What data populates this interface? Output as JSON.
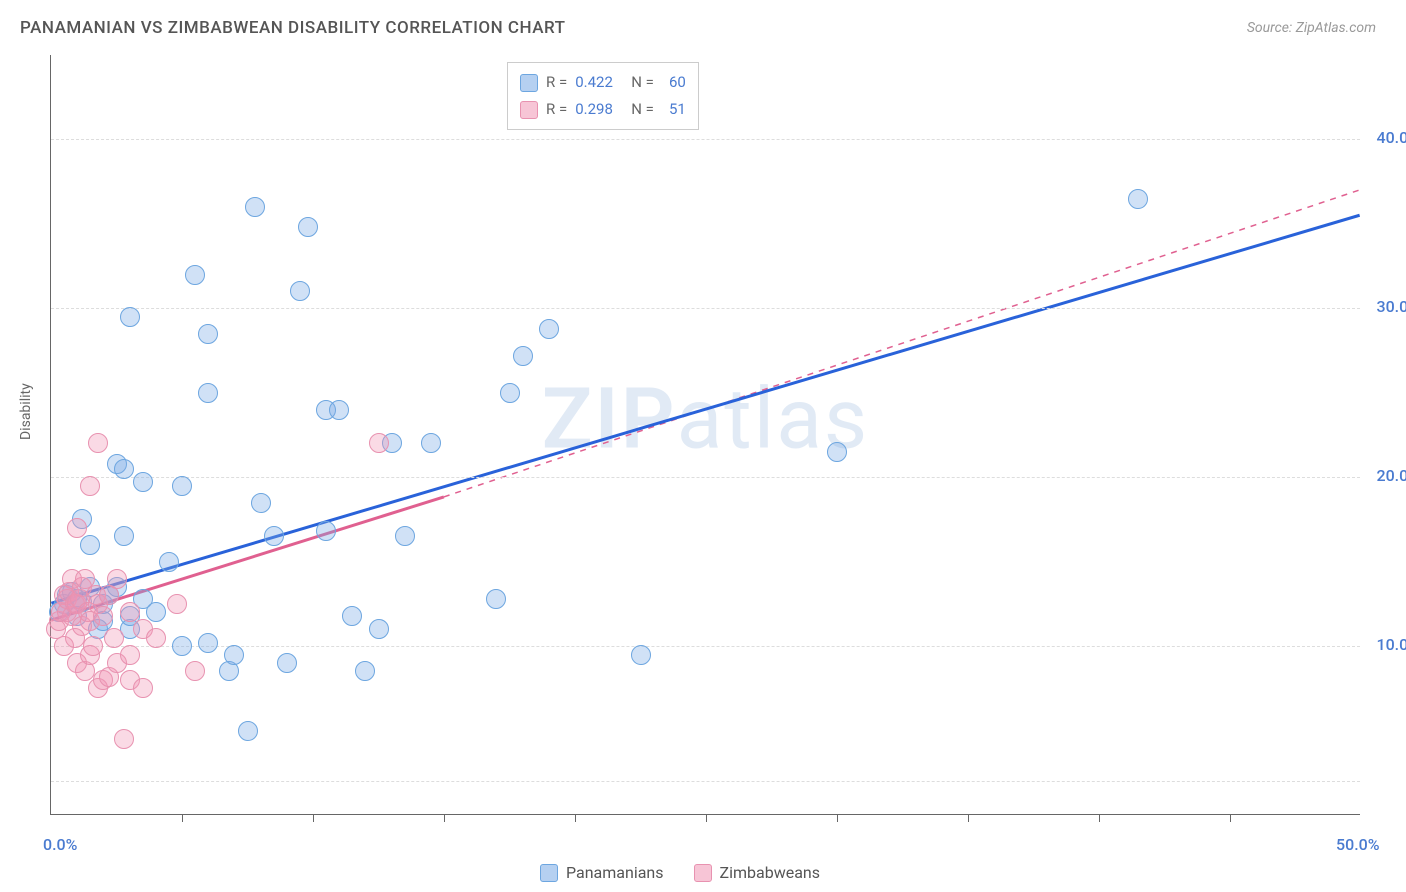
{
  "chart": {
    "type": "scatter",
    "title": "PANAMANIAN VS ZIMBABWEAN DISABILITY CORRELATION CHART",
    "source": "Source: ZipAtlas.com",
    "watermark": "ZIPatlas",
    "ylabel": "Disability",
    "background_color": "#ffffff",
    "grid_color": "#dddddd",
    "axis_color": "#666666",
    "title_color": "#555555",
    "title_fontsize": 17,
    "xlim": [
      0,
      50
    ],
    "ylim": [
      0,
      45
    ],
    "x_ticks": [
      0,
      10,
      20,
      30,
      40,
      50
    ],
    "x_tick_labels": {
      "0": "0.0%",
      "50": "50.0%"
    },
    "x_tick_positions_inner": [
      5,
      10,
      15,
      20,
      25,
      30,
      35,
      40,
      45
    ],
    "y_gridlines": [
      2,
      10,
      20,
      30,
      40
    ],
    "y_tick_labels": {
      "10": "10.0%",
      "20": "20.0%",
      "30": "30.0%",
      "40": "40.0%"
    },
    "y_label_color": "#4a7bd0",
    "x_label_color": "#4a7bd0",
    "point_radius": 10,
    "point_stroke_width": 1.5,
    "series": [
      {
        "name": "Panamanians",
        "fill_color": "rgba(120,170,230,0.35)",
        "stroke_color": "#6da6e0",
        "trend_color": "#2962d9",
        "trend_solid": {
          "x1": 0,
          "y1": 12.5,
          "x2": 50,
          "y2": 35.5
        },
        "R": "0.422",
        "N": "60",
        "points": [
          [
            0.3,
            12.0
          ],
          [
            0.5,
            12.5
          ],
          [
            0.6,
            13.0
          ],
          [
            0.8,
            13.2
          ],
          [
            1.0,
            11.8
          ],
          [
            1.0,
            12.8
          ],
          [
            1.2,
            12.6
          ],
          [
            1.2,
            17.5
          ],
          [
            1.5,
            13.5
          ],
          [
            1.5,
            16.0
          ],
          [
            1.8,
            11.0
          ],
          [
            2.0,
            12.5
          ],
          [
            2.0,
            11.5
          ],
          [
            2.2,
            13.0
          ],
          [
            2.5,
            20.8
          ],
          [
            2.5,
            13.5
          ],
          [
            2.8,
            20.5
          ],
          [
            2.8,
            16.5
          ],
          [
            3.0,
            29.5
          ],
          [
            3.0,
            11.0
          ],
          [
            3.0,
            11.8
          ],
          [
            3.5,
            12.8
          ],
          [
            3.5,
            19.7
          ],
          [
            4.0,
            12.0
          ],
          [
            4.5,
            15.0
          ],
          [
            5.0,
            10.0
          ],
          [
            5.0,
            19.5
          ],
          [
            5.5,
            32.0
          ],
          [
            6.0,
            10.2
          ],
          [
            6.0,
            25.0
          ],
          [
            6.0,
            28.5
          ],
          [
            6.8,
            8.5
          ],
          [
            7.0,
            9.5
          ],
          [
            7.5,
            5.0
          ],
          [
            7.8,
            36.0
          ],
          [
            8.0,
            18.5
          ],
          [
            8.5,
            16.5
          ],
          [
            9.0,
            9.0
          ],
          [
            9.5,
            31.0
          ],
          [
            9.8,
            34.8
          ],
          [
            10.5,
            24.0
          ],
          [
            10.5,
            16.8
          ],
          [
            11.0,
            24.0
          ],
          [
            11.5,
            11.8
          ],
          [
            12.0,
            8.5
          ],
          [
            12.5,
            11.0
          ],
          [
            13.0,
            22.0
          ],
          [
            13.5,
            16.5
          ],
          [
            14.5,
            22.0
          ],
          [
            17.0,
            12.8
          ],
          [
            17.5,
            25.0
          ],
          [
            18.0,
            27.2
          ],
          [
            19.0,
            28.8
          ],
          [
            22.5,
            9.5
          ],
          [
            30.0,
            21.5
          ],
          [
            41.5,
            36.5
          ]
        ]
      },
      {
        "name": "Zimbabweans",
        "fill_color": "rgba(240,150,180,0.35)",
        "stroke_color": "#e892b0",
        "trend_color": "#e06090",
        "trend_solid": {
          "x1": 0,
          "y1": 11.5,
          "x2": 15,
          "y2": 18.8
        },
        "trend_dashed": {
          "x1": 15,
          "y1": 18.8,
          "x2": 50,
          "y2": 37.0
        },
        "R": "0.298",
        "N": "51",
        "points": [
          [
            0.2,
            11.0
          ],
          [
            0.3,
            11.5
          ],
          [
            0.4,
            12.0
          ],
          [
            0.5,
            10.0
          ],
          [
            0.5,
            13.0
          ],
          [
            0.6,
            12.0
          ],
          [
            0.6,
            12.8
          ],
          [
            0.7,
            13.2
          ],
          [
            0.8,
            11.8
          ],
          [
            0.8,
            14.0
          ],
          [
            0.9,
            12.5
          ],
          [
            0.9,
            10.5
          ],
          [
            1.0,
            9.0
          ],
          [
            1.0,
            12.5
          ],
          [
            1.0,
            17.0
          ],
          [
            1.1,
            12.8
          ],
          [
            1.2,
            11.2
          ],
          [
            1.2,
            13.5
          ],
          [
            1.3,
            8.5
          ],
          [
            1.3,
            14.0
          ],
          [
            1.4,
            12.0
          ],
          [
            1.5,
            11.5
          ],
          [
            1.5,
            9.5
          ],
          [
            1.5,
            19.5
          ],
          [
            1.6,
            10.0
          ],
          [
            1.7,
            13.0
          ],
          [
            1.8,
            7.5
          ],
          [
            1.8,
            12.5
          ],
          [
            1.8,
            22.0
          ],
          [
            2.0,
            8.0
          ],
          [
            2.0,
            11.8
          ],
          [
            2.2,
            8.2
          ],
          [
            2.2,
            13.0
          ],
          [
            2.4,
            10.5
          ],
          [
            2.5,
            9.0
          ],
          [
            2.5,
            14.0
          ],
          [
            2.8,
            4.5
          ],
          [
            3.0,
            9.5
          ],
          [
            3.0,
            12.0
          ],
          [
            3.0,
            8.0
          ],
          [
            3.5,
            11.0
          ],
          [
            3.5,
            7.5
          ],
          [
            4.0,
            10.5
          ],
          [
            4.8,
            12.5
          ],
          [
            5.5,
            8.5
          ],
          [
            12.5,
            22.0
          ]
        ]
      }
    ],
    "legend_top": {
      "rows": [
        {
          "swatch_fill": "rgba(120,170,230,0.55)",
          "swatch_stroke": "#6da6e0",
          "r_text": "R =",
          "r_val": "0.422",
          "n_text": "N =",
          "n_val": "60"
        },
        {
          "swatch_fill": "rgba(240,150,180,0.55)",
          "swatch_stroke": "#e892b0",
          "r_text": "R =",
          "r_val": "0.298",
          "n_text": "N =",
          "n_val": "51"
        }
      ],
      "label_color": "#666666",
      "value_color": "#4a7bd0"
    },
    "legend_bottom": [
      {
        "swatch_fill": "rgba(120,170,230,0.55)",
        "swatch_stroke": "#6da6e0",
        "label": "Panamanians"
      },
      {
        "swatch_fill": "rgba(240,150,180,0.55)",
        "swatch_stroke": "#e892b0",
        "label": "Zimbabweans"
      }
    ]
  }
}
